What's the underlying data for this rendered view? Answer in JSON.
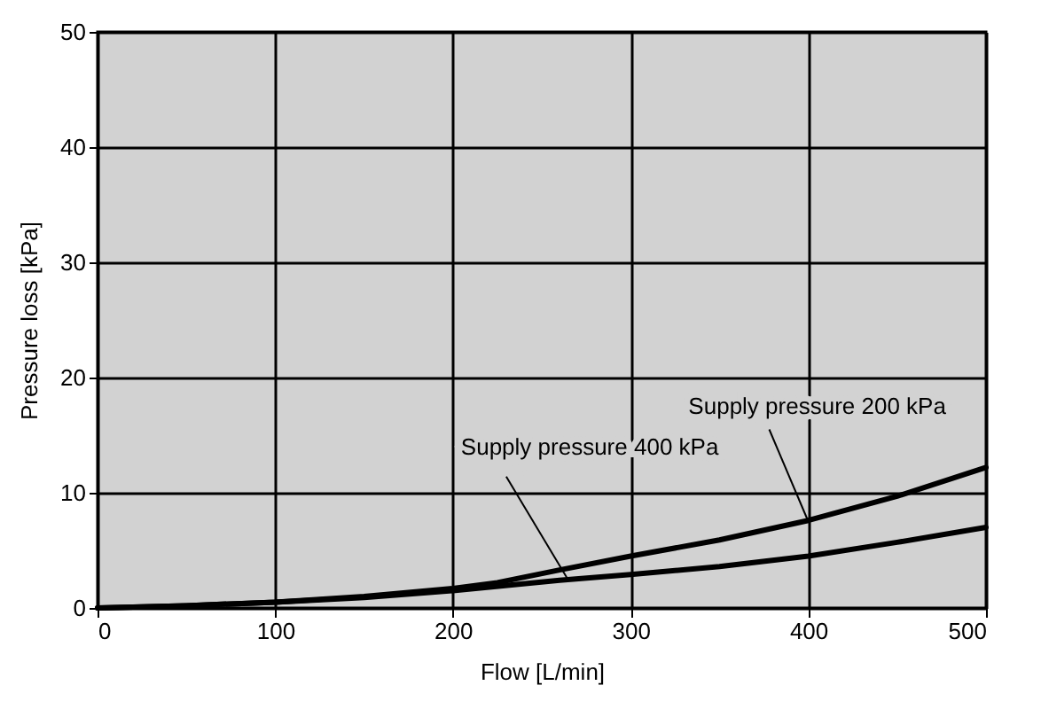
{
  "chart_data": {
    "type": "line",
    "xlabel": "Flow [L/min]",
    "ylabel": "Pressure loss [kPa]",
    "xlim": [
      0,
      500
    ],
    "xticks": [
      0,
      100,
      200,
      300,
      400,
      500
    ],
    "ylim": [
      0,
      50
    ],
    "yticks": [
      0,
      10,
      20,
      30,
      40,
      50
    ],
    "grid": true,
    "series": [
      {
        "color": "#000000",
        "x": [
          0,
          50,
          100,
          150,
          200,
          225,
          260,
          300,
          350,
          400,
          450,
          500
        ],
        "values": [
          0,
          0.2,
          0.5,
          1.0,
          1.7,
          2.2,
          3.3,
          4.5,
          5.9,
          7.6,
          9.7,
          12.2
        ]
      },
      {
        "color": "#000000",
        "x": [
          0,
          50,
          100,
          150,
          200,
          260,
          300,
          350,
          400,
          450,
          500
        ],
        "values": [
          0,
          0.2,
          0.5,
          0.9,
          1.5,
          2.4,
          2.9,
          3.6,
          4.5,
          5.7,
          7.0
        ]
      }
    ],
    "annotations": [
      {
        "text": "Supply pressure 200 kPa",
        "x": 400,
        "y": 7.5
      },
      {
        "text": "Supply pressure 400 kPa",
        "x": 265,
        "y": 2.4
      }
    ]
  }
}
